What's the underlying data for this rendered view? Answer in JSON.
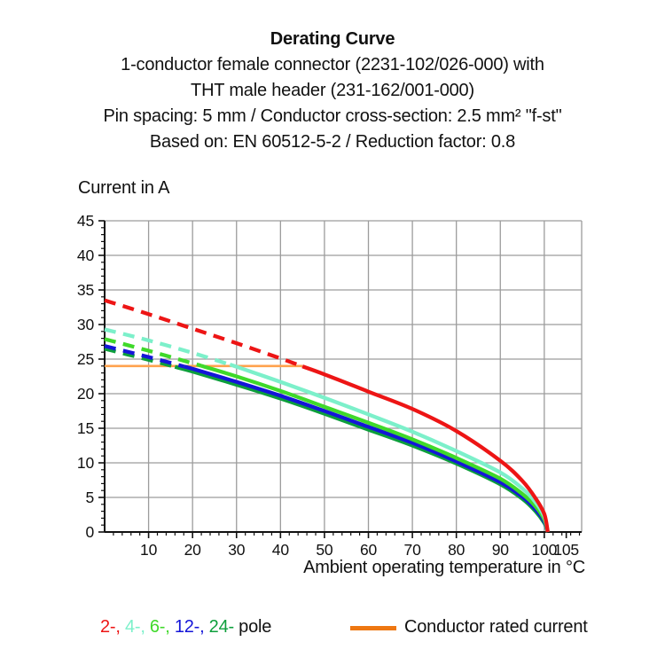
{
  "title": {
    "line1": "Derating Curve",
    "line2": "1-conductor female connector (2231-102/026-000) with",
    "line3": "THT male header (231-162/001-000)",
    "line4": "Pin spacing: 5 mm / Conductor cross-section: 2.5 mm² \"f-st\"",
    "line5": "Based on: EN 60512-5-2 / Reduction factor: 0.8"
  },
  "chart_data": {
    "type": "line",
    "title": "Derating Curve",
    "ylabel": "Current in A",
    "xlabel": "Ambient operating temperature in °C",
    "xlim": [
      0,
      108.5
    ],
    "ylim": [
      0,
      45
    ],
    "x_major_ticks": [
      10,
      20,
      30,
      40,
      50,
      60,
      70,
      80,
      90,
      100,
      105
    ],
    "x_minor_step": 2,
    "y_major_ticks": [
      0,
      5,
      10,
      15,
      20,
      25,
      30,
      35,
      40,
      45
    ],
    "y_minor_step": 1,
    "x_gridlines": [
      10,
      20,
      30,
      40,
      50,
      60,
      70,
      80,
      90,
      100,
      108.5
    ],
    "y_gridlines": [
      5,
      10,
      15,
      20,
      25,
      30,
      35,
      40,
      45
    ],
    "grid": true,
    "grid_color": "#9c9c9c",
    "axis_color": "#111111",
    "rated_current": {
      "label": "Conductor rated current",
      "value": 24,
      "x_start": 0,
      "x_end": 45,
      "line_color": "#ffa24d"
    },
    "note": "curves dashed above rated current (24 A), solid below",
    "x_samples": [
      0,
      10,
      20,
      30,
      40,
      50,
      60,
      70,
      80,
      90,
      95,
      98,
      100,
      100.8
    ],
    "series": [
      {
        "name": "24-pole",
        "color": "#0d9f3c",
        "dash_until_x": 16,
        "y": [
          26.5,
          24.9,
          23.2,
          21.3,
          19.3,
          17.1,
          14.8,
          12.5,
          9.9,
          6.9,
          4.8,
          3.0,
          1.3,
          0
        ]
      },
      {
        "name": "12-pole",
        "color": "#1415d8",
        "dash_until_x": 18,
        "y": [
          26.9,
          25.3,
          23.6,
          21.7,
          19.7,
          17.5,
          15.2,
          12.9,
          10.2,
          7.2,
          5.1,
          3.3,
          1.5,
          0
        ]
      },
      {
        "name": "6-pole",
        "color": "#3fd92a",
        "dash_until_x": 22,
        "y": [
          27.9,
          26.2,
          24.4,
          22.5,
          20.4,
          18.1,
          15.8,
          13.4,
          10.7,
          7.7,
          5.5,
          3.7,
          1.8,
          0
        ]
      },
      {
        "name": "4-pole",
        "color": "#7cf0ca",
        "dash_until_x": 28.5,
        "y": [
          29.3,
          27.7,
          25.9,
          23.9,
          21.7,
          19.4,
          17.0,
          14.5,
          11.7,
          8.6,
          6.3,
          4.3,
          2.2,
          0
        ]
      },
      {
        "name": "2-pole",
        "color": "#ed1515",
        "dash_until_x": 45,
        "y": [
          33.5,
          31.5,
          29.4,
          27.3,
          25.1,
          22.8,
          20.3,
          17.8,
          14.6,
          10.3,
          7.4,
          4.9,
          2.6,
          0
        ]
      }
    ]
  },
  "legend": {
    "pole_items": [
      {
        "label": "2-,",
        "color": "#ed1515"
      },
      {
        "label": "4-,",
        "color": "#7cf0ca"
      },
      {
        "label": "6-,",
        "color": "#3fd92a"
      },
      {
        "label": "12-,",
        "color": "#1415d8"
      },
      {
        "label": "24-",
        "color": "#0d9f3c"
      }
    ],
    "pole_suffix": "pole",
    "rated_label": "Conductor rated current",
    "rated_swatch_color": "#ee7711"
  }
}
